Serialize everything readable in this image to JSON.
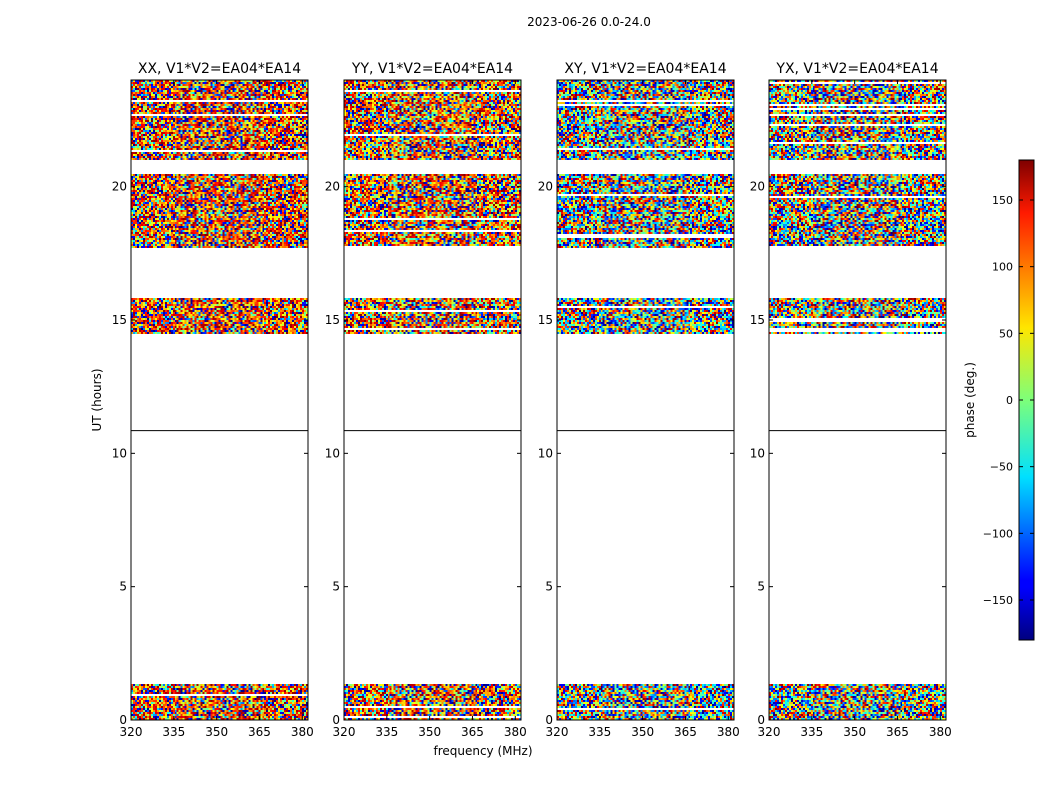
{
  "chart_data": {
    "type": "heatmap",
    "suptitle": "2023-06-26 0.0-24.0",
    "xlabel": "frequency (MHz)",
    "ylabel": "UT (hours)",
    "xlim": [
      320,
      382
    ],
    "ylim": [
      0,
      24
    ],
    "xticks": [
      320,
      335,
      350,
      365,
      380
    ],
    "yticks": [
      0,
      5,
      10,
      15,
      20
    ],
    "colorbar": {
      "label": "phase (deg.)",
      "range": [
        -180,
        180
      ],
      "ticks": [
        150,
        100,
        50,
        0,
        -50,
        -100,
        -150
      ],
      "tick_labels": [
        "150",
        "100",
        "50",
        "0",
        "−50",
        "−100",
        "−150"
      ]
    },
    "data_time_ranges_hours": [
      [
        0.0,
        1.35
      ],
      [
        14.5,
        15.8
      ],
      [
        17.7,
        20.5
      ],
      [
        21.0,
        24.0
      ]
    ],
    "panels": [
      {
        "title": "XX, V1*V2=EA04*EA14",
        "dominant_phase_deg": 120,
        "phase_spread_deg": 60
      },
      {
        "title": "YY, V1*V2=EA04*EA14",
        "dominant_phase_deg": 110,
        "phase_spread_deg": 70
      },
      {
        "title": "XY, V1*V2=EA04*EA14",
        "dominant_phase_deg": null,
        "phase_spread_deg": 180
      },
      {
        "title": "YX, V1*V2=EA04*EA14",
        "dominant_phase_deg": 100,
        "phase_spread_deg": 120
      }
    ]
  }
}
